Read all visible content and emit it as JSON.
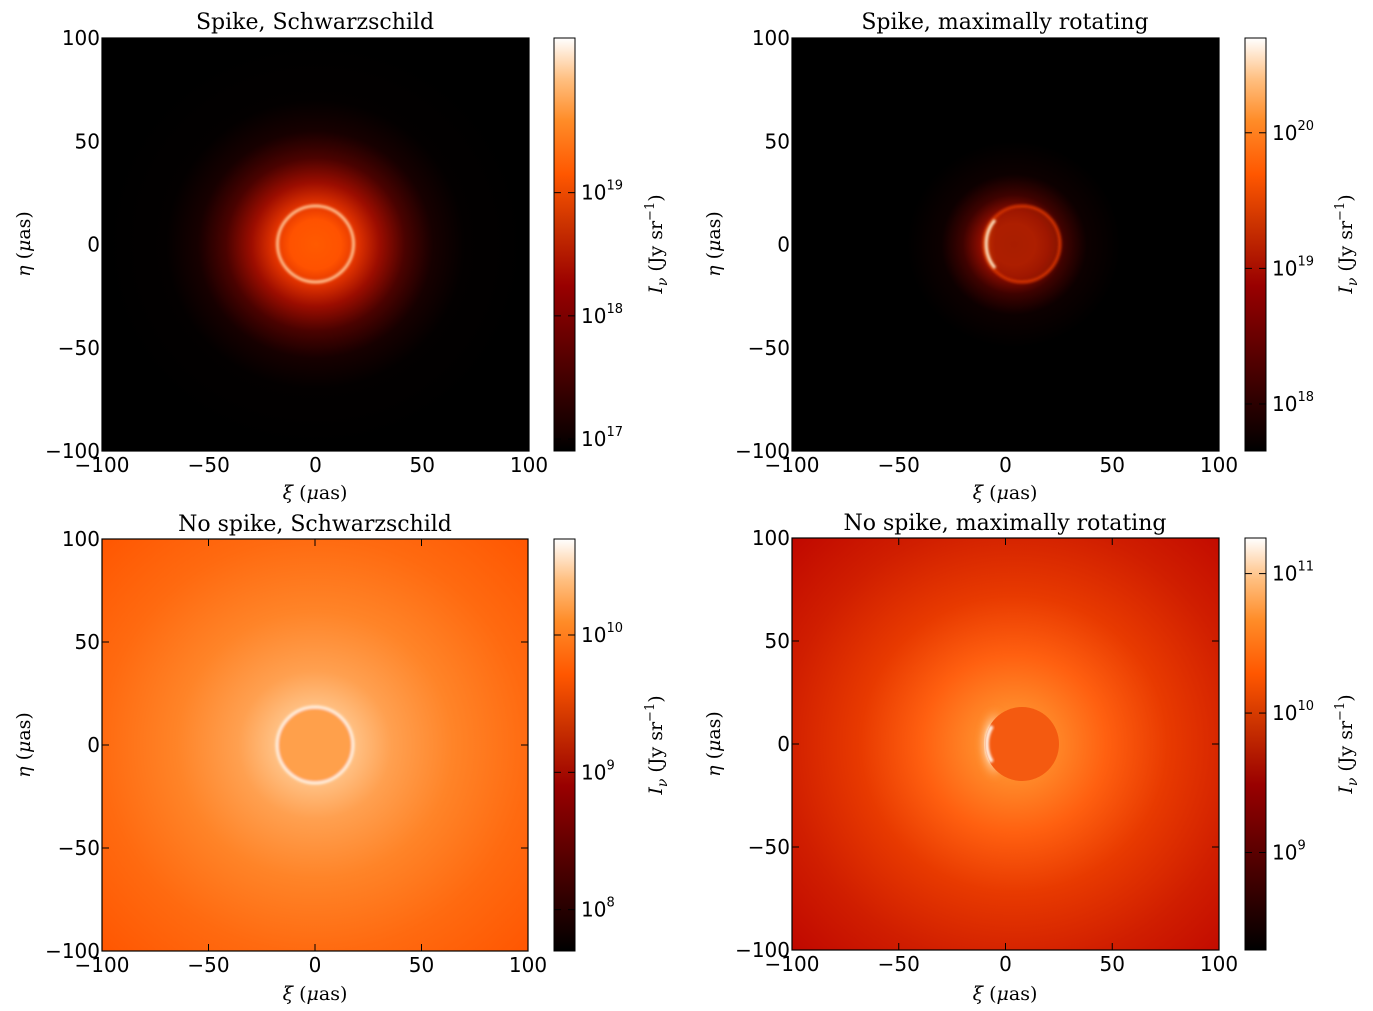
{
  "figure": {
    "background": "#ffffff"
  },
  "chart_data": [
    {
      "type": "heatmap",
      "title": "Spike, Schwarzschild",
      "xlabel": "ξ (μas)",
      "ylabel": "η (μas)",
      "xlim": [
        -100,
        100
      ],
      "ylim": [
        -100,
        100
      ],
      "xticks": [
        -100,
        -50,
        0,
        50,
        100
      ],
      "yticks": [
        -100,
        -50,
        0,
        50,
        100
      ],
      "xtick_labels": [
        "−100",
        "−50",
        "0",
        "50",
        "100"
      ],
      "ytick_labels": [
        "−100",
        "−50",
        "0",
        "50",
        "100"
      ],
      "colorbar": {
        "label": "Iν (Jy sr−1)",
        "scale": "log",
        "colormap": "gist_heat",
        "range": [
          8e+16,
          1.8e+20
        ],
        "ticks": [
          {
            "base": "10",
            "exp": "17"
          },
          {
            "base": "10",
            "exp": "18"
          },
          {
            "base": "10",
            "exp": "19"
          }
        ]
      },
      "image_model": {
        "ring_center": [
          0,
          0
        ],
        "ring_radius": 18,
        "halo_scale": 22,
        "asymmetry": "none"
      }
    },
    {
      "type": "heatmap",
      "title": "Spike, maximally rotating",
      "xlabel": "ξ (μas)",
      "ylabel": "η (μas)",
      "xlim": [
        -100,
        100
      ],
      "ylim": [
        -100,
        100
      ],
      "xticks": [
        -100,
        -50,
        0,
        50,
        100
      ],
      "yticks": [
        -100,
        -50,
        0,
        50,
        100
      ],
      "xtick_labels": [
        "−100",
        "−50",
        "0",
        "50",
        "100"
      ],
      "ytick_labels": [
        "−100",
        "−50",
        "0",
        "50",
        "100"
      ],
      "colorbar": {
        "label": "Iν (Jy sr−1)",
        "scale": "log",
        "colormap": "gist_heat",
        "range": [
          4.5e+17,
          5e+20
        ],
        "ticks": [
          {
            "base": "10",
            "exp": "18"
          },
          {
            "base": "10",
            "exp": "19"
          },
          {
            "base": "10",
            "exp": "20"
          }
        ]
      },
      "image_model": {
        "ring_center": [
          8,
          0
        ],
        "ring_radius": 18,
        "halo_scale": 14,
        "asymmetry": "bright left crescent"
      }
    },
    {
      "type": "heatmap",
      "title": "No spike, Schwarzschild",
      "xlabel": "ξ (μas)",
      "ylabel": "η (μas)",
      "xlim": [
        -100,
        100
      ],
      "ylim": [
        -100,
        100
      ],
      "xticks": [
        -100,
        -50,
        0,
        50,
        100
      ],
      "yticks": [
        -100,
        -50,
        0,
        50,
        100
      ],
      "xtick_labels": [
        "−100",
        "−50",
        "0",
        "50",
        "100"
      ],
      "ytick_labels": [
        "−100",
        "−50",
        "0",
        "50",
        "100"
      ],
      "colorbar": {
        "label": "Iν (Jy sr−1)",
        "scale": "log",
        "colormap": "gist_heat",
        "range": [
          50000000.0,
          50000000000.0
        ],
        "ticks": [
          {
            "base": "10",
            "exp": "8"
          },
          {
            "base": "10",
            "exp": "9"
          },
          {
            "base": "10",
            "exp": "10"
          }
        ]
      },
      "image_model": {
        "ring_center": [
          0,
          0
        ],
        "ring_radius": 18,
        "halo_scale": 60,
        "asymmetry": "none"
      }
    },
    {
      "type": "heatmap",
      "title": "No spike, maximally rotating",
      "xlabel": "ξ (μas)",
      "ylabel": "η (μas)",
      "xlim": [
        -100,
        100
      ],
      "ylim": [
        -100,
        100
      ],
      "xticks": [
        -100,
        -50,
        0,
        50,
        100
      ],
      "yticks": [
        -100,
        -50,
        0,
        50,
        100
      ],
      "xtick_labels": [
        "−100",
        "−50",
        "0",
        "50",
        "100"
      ],
      "ytick_labels": [
        "−100",
        "−50",
        "0",
        "50",
        "100"
      ],
      "colorbar": {
        "label": "Iν (Jy sr−1)",
        "scale": "log",
        "colormap": "gist_heat",
        "range": [
          200000000.0,
          180000000000.0
        ],
        "ticks": [
          {
            "base": "10",
            "exp": "9"
          },
          {
            "base": "10",
            "exp": "10"
          },
          {
            "base": "10",
            "exp": "11"
          }
        ]
      },
      "image_model": {
        "ring_center": [
          8,
          0
        ],
        "ring_radius": 18,
        "halo_scale": 45,
        "asymmetry": "bright left edge"
      }
    }
  ]
}
